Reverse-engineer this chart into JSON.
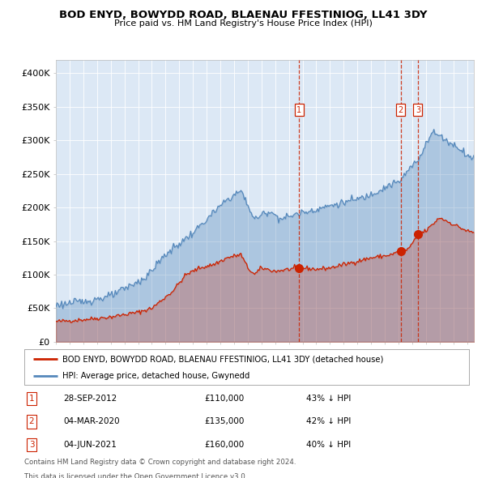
{
  "title": "BOD ENYD, BOWYDD ROAD, BLAENAU FFESTINIOG, LL41 3DY",
  "subtitle": "Price paid vs. HM Land Registry's House Price Index (HPI)",
  "ylabel_ticks": [
    "£0",
    "£50K",
    "£100K",
    "£150K",
    "£200K",
    "£250K",
    "£300K",
    "£350K",
    "£400K"
  ],
  "ytick_values": [
    0,
    50000,
    100000,
    150000,
    200000,
    250000,
    300000,
    350000,
    400000
  ],
  "ylim": [
    0,
    420000
  ],
  "xlim_start": 1995.0,
  "xlim_end": 2025.5,
  "background_plot": "#dce8f5",
  "background_fig": "#ffffff",
  "hpi_color": "#5588bb",
  "hpi_fill_alpha": 0.35,
  "price_color": "#cc2200",
  "price_fill_alpha": 0.25,
  "grid_color": "#ffffff",
  "sale_points": [
    {
      "date_decimal": 2012.74,
      "price": 110000,
      "label": "1"
    },
    {
      "date_decimal": 2020.17,
      "price": 135000,
      "label": "2"
    },
    {
      "date_decimal": 2021.42,
      "price": 160000,
      "label": "3"
    }
  ],
  "sale_labels": [
    {
      "label": "1",
      "date": "28-SEP-2012",
      "price": "£110,000",
      "hpi_diff": "43% ↓ HPI"
    },
    {
      "label": "2",
      "date": "04-MAR-2020",
      "price": "£135,000",
      "hpi_diff": "42% ↓ HPI"
    },
    {
      "label": "3",
      "date": "04-JUN-2021",
      "price": "£160,000",
      "hpi_diff": "40% ↓ HPI"
    }
  ],
  "legend_line1": "BOD ENYD, BOWYDD ROAD, BLAENAU FFESTINIOG, LL41 3DY (detached house)",
  "legend_line2": "HPI: Average price, detached house, Gwynedd",
  "footnote1": "Contains HM Land Registry data © Crown copyright and database right 2024.",
  "footnote2": "This data is licensed under the Open Government Licence v3.0.",
  "hpi_anchors_x": [
    1995.0,
    1997.0,
    1999.0,
    2001.5,
    2003.0,
    2005.0,
    2007.5,
    2008.5,
    2009.5,
    2010.5,
    2011.5,
    2012.5,
    2013.5,
    2014.5,
    2015.5,
    2016.5,
    2017.5,
    2018.5,
    2019.5,
    2020.0,
    2021.0,
    2021.5,
    2022.0,
    2022.5,
    2023.0,
    2023.5,
    2024.0,
    2024.5,
    2025.0,
    2025.4
  ],
  "hpi_anchors_y": [
    55000,
    60000,
    68000,
    95000,
    130000,
    162000,
    212000,
    225000,
    182000,
    195000,
    183000,
    190000,
    195000,
    200000,
    205000,
    210000,
    215000,
    225000,
    235000,
    237000,
    262000,
    272000,
    297000,
    312000,
    307000,
    300000,
    293000,
    288000,
    278000,
    273000
  ],
  "price_anchors_x": [
    1995.0,
    1997.0,
    1999.0,
    2001.0,
    2002.0,
    2003.5,
    2004.5,
    2005.5,
    2006.5,
    2007.5,
    2008.5,
    2009.0,
    2009.5,
    2010.0,
    2011.0,
    2012.0,
    2012.74,
    2013.0,
    2014.0,
    2015.0,
    2016.0,
    2017.0,
    2018.0,
    2019.0,
    2019.5,
    2020.17,
    2020.5,
    2021.0,
    2021.42,
    2022.0,
    2022.5,
    2023.0,
    2023.5,
    2024.0,
    2024.5,
    2025.0,
    2025.4
  ],
  "price_anchors_y": [
    30000,
    33000,
    37000,
    44000,
    50000,
    75000,
    100000,
    110000,
    115000,
    125000,
    130000,
    110000,
    100000,
    110000,
    105000,
    108000,
    110000,
    110000,
    108000,
    110000,
    115000,
    120000,
    125000,
    128000,
    130000,
    135000,
    135000,
    145000,
    160000,
    165000,
    175000,
    185000,
    180000,
    175000,
    170000,
    165000,
    163000
  ]
}
